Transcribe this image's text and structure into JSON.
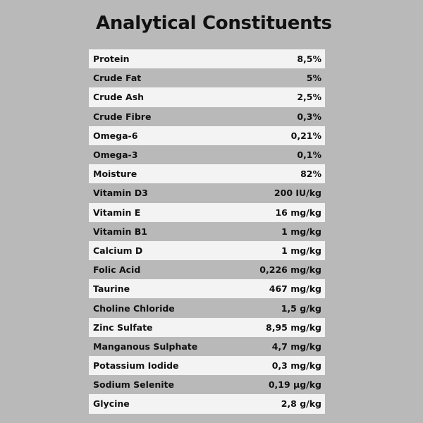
{
  "title": "Analytical Constituents",
  "rows": [
    {
      "name": "Protein",
      "value": "8,5%"
    },
    {
      "name": "Crude Fat",
      "value": "5%"
    },
    {
      "name": "Crude Ash",
      "value": "2,5%"
    },
    {
      "name": "Crude Fibre",
      "value": "0,3%"
    },
    {
      "name": "Omega-6",
      "value": "0,21%"
    },
    {
      "name": "Omega-3",
      "value": "0,1%"
    },
    {
      "name": "Moisture",
      "value": "82%"
    },
    {
      "name": "Vitamin D3",
      "value": "200 IU/kg"
    },
    {
      "name": "Vitamin E",
      "value": "16 mg/kg"
    },
    {
      "name": "Vitamin B1",
      "value": "1 mg/kg"
    },
    {
      "name": "Calcium D",
      "value": "1 mg/kg"
    },
    {
      "name": "Folic Acid",
      "value": "0,226 mg/kg"
    },
    {
      "name": "Taurine",
      "value": "467 mg/kg"
    },
    {
      "name": "Choline Chloride",
      "value": "1,5 g/kg"
    },
    {
      "name": "Zinc Sulfate",
      "value": "8,95 mg/kg"
    },
    {
      "name": "Manganous Sulphate",
      "value": "4,7 mg/kg"
    },
    {
      "name": "Potassium Iodide",
      "value": "0,3 mg/kg"
    },
    {
      "name": "Sodium Selenite",
      "value": "0,19 µg/kg"
    },
    {
      "name": "Glycine",
      "value": "2,8 g/kg"
    }
  ]
}
